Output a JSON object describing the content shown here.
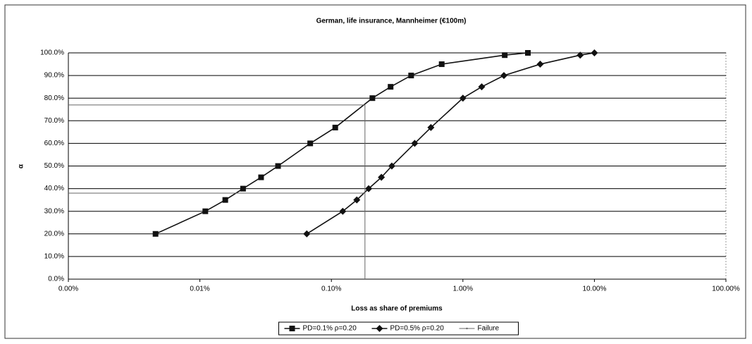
{
  "chart_data": {
    "type": "line",
    "title": "German, life insurance, Mannheimer (€100m)",
    "x_label": "Loss as share of premiums",
    "y_label": "α",
    "x_log": true,
    "grid": true,
    "legend": "bottom",
    "xlim": [
      0.001,
      100
    ],
    "xticks": [
      {
        "value": 0.001,
        "label": "0.00%"
      },
      {
        "value": 0.01,
        "label": "0.01%"
      },
      {
        "value": 0.1,
        "label": "0.10%"
      },
      {
        "value": 1,
        "label": "1.00%"
      },
      {
        "value": 10,
        "label": "10.00%"
      },
      {
        "value": 100,
        "label": "100.00%"
      }
    ],
    "ylim": [
      0,
      100
    ],
    "yticks": [
      {
        "value": 0,
        "label": "0.0%"
      },
      {
        "value": 10,
        "label": "10.0%"
      },
      {
        "value": 20,
        "label": "20.0%"
      },
      {
        "value": 30,
        "label": "30.0%"
      },
      {
        "value": 40,
        "label": "40.0%"
      },
      {
        "value": 50,
        "label": "50.0%"
      },
      {
        "value": 60,
        "label": "60.0%"
      },
      {
        "value": 70,
        "label": "70.0%"
      },
      {
        "value": 80,
        "label": "80.0%"
      },
      {
        "value": 90,
        "label": "90.0%"
      },
      {
        "value": 100,
        "label": "100.0%"
      }
    ],
    "series": [
      {
        "name": "PD=0.1% ρ=0.20",
        "color": "#111111",
        "marker": "square",
        "x": [
          0.0046,
          0.011,
          0.0156,
          0.0213,
          0.0292,
          0.0393,
          0.069,
          0.107,
          0.205,
          0.282,
          0.404,
          0.69,
          2.08,
          3.12
        ],
        "values": [
          20,
          30,
          35,
          40,
          45,
          50,
          60,
          67,
          80,
          85,
          90,
          95,
          99,
          100
        ]
      },
      {
        "name": "PD=0.5% ρ=0.20",
        "color": "#111111",
        "marker": "diamond",
        "x": [
          0.065,
          0.122,
          0.156,
          0.192,
          0.24,
          0.288,
          0.43,
          0.571,
          1.0,
          1.39,
          2.05,
          3.87,
          7.8,
          10
        ],
        "values": [
          20,
          30,
          35,
          40,
          45,
          50,
          60,
          67,
          80,
          85,
          90,
          95,
          99,
          100
        ]
      },
      {
        "name": "Failure",
        "color": "#666666",
        "marker": "dot",
        "x": [
          0.001,
          0.18,
          0.18,
          null,
          0.001,
          0.18
        ],
        "values": [
          77,
          77,
          0,
          null,
          38,
          38
        ]
      }
    ]
  }
}
